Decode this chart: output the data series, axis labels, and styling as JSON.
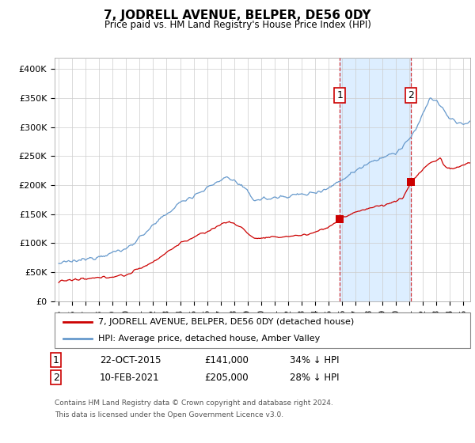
{
  "title": "7, JODRELL AVENUE, BELPER, DE56 0DY",
  "subtitle": "Price paid vs. HM Land Registry's House Price Index (HPI)",
  "ylabel_ticks": [
    "£0",
    "£50K",
    "£100K",
    "£150K",
    "£200K",
    "£250K",
    "£300K",
    "£350K",
    "£400K"
  ],
  "ytick_values": [
    0,
    50000,
    100000,
    150000,
    200000,
    250000,
    300000,
    350000,
    400000
  ],
  "ylim": [
    0,
    420000
  ],
  "hpi_color": "#6699cc",
  "price_color": "#cc0000",
  "vline_color": "#cc0000",
  "shade_color": "#ddeeff",
  "legend_house": "7, JODRELL AVENUE, BELPER, DE56 0DY (detached house)",
  "legend_hpi": "HPI: Average price, detached house, Amber Valley",
  "transaction1_label": "1",
  "transaction1_date": "22-OCT-2015",
  "transaction1_price": "£141,000",
  "transaction1_hpi": "34% ↓ HPI",
  "transaction2_label": "2",
  "transaction2_date": "10-FEB-2021",
  "transaction2_price": "£205,000",
  "transaction2_hpi": "28% ↓ HPI",
  "footnote1": "Contains HM Land Registry data © Crown copyright and database right 2024.",
  "footnote2": "This data is licensed under the Open Government Licence v3.0.",
  "transaction1_year": 2015.83,
  "transaction1_value": 141000,
  "transaction2_year": 2021.1,
  "transaction2_value": 205000,
  "xlim_left": 1994.7,
  "xlim_right": 2025.5
}
